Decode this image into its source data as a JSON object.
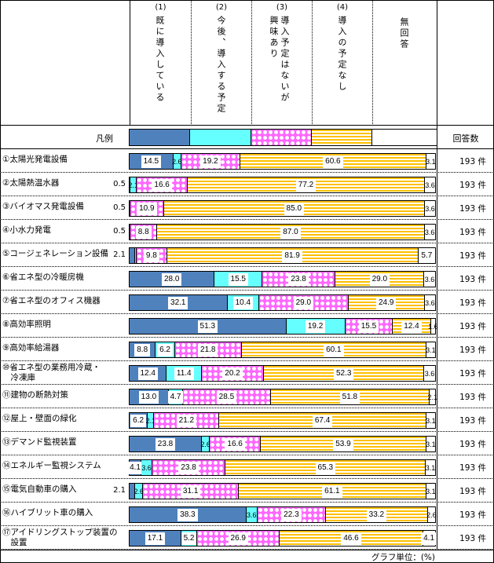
{
  "header": {
    "columns": [
      {
        "num": "(1)",
        "text": "既に導入している"
      },
      {
        "num": "(2)",
        "text": "今後、導入する予定"
      },
      {
        "num": "(3)",
        "text": "導入予定はないが興味あり"
      },
      {
        "num": "(4)",
        "text": "導入の予定なし"
      },
      {
        "num": "",
        "text": "無回答"
      }
    ]
  },
  "legend": {
    "label": "凡例",
    "count_header": "回答数"
  },
  "colors": {
    "already": "#4f81bd",
    "planned": "#66ffff",
    "interested": "#ff66ff",
    "no_plan": "#ffc000",
    "no_answer": "#ffffff"
  },
  "footer": {
    "unit": "グラフ単位：(%)"
  },
  "chart_data": {
    "type": "bar",
    "orientation": "horizontal-stacked-100",
    "title": "",
    "unit": "%",
    "series_names": [
      "(1)既に導入している",
      "(2)今後、導入する予定",
      "(3)導入予定はないが興味あり",
      "(4)導入の予定なし",
      "無回答"
    ],
    "categories": [
      "①太陽光発電設備",
      "②太陽熱温水器",
      "③バイオマス発電設備",
      "④小水力発電",
      "⑤コージェネレーション設備",
      "⑥省エネ型の冷暖房機",
      "⑦省エネ型のオフィス機器",
      "⑧高効率照明",
      "⑨高効率給湯器",
      "⑩省エネ型の業務用冷蔵・冷凍庫",
      "⑪建物の断熱対策",
      "⑫屋上・壁面の緑化",
      "⑬デマンド監視装置",
      "⑭エネルギー監視システム",
      "⑮電気自動車の購入",
      "⑯ハイブリット車の購入",
      "⑰アイドリングストップ装置の設置"
    ],
    "rows": [
      {
        "label": "①太陽光発電設備",
        "values": [
          14.5,
          2.6,
          19.2,
          60.6,
          3.1
        ],
        "n": "193"
      },
      {
        "label": "②太陽熱温水器",
        "values": [
          0.5,
          2.1,
          16.6,
          77.2,
          3.6
        ],
        "n": "193"
      },
      {
        "label": "③バイオマス発電設備",
        "values": [
          0.5,
          0.0,
          10.9,
          85.0,
          3.6
        ],
        "n": "193"
      },
      {
        "label": "④小水力発電",
        "values": [
          0.5,
          0.0,
          8.8,
          87.0,
          3.6
        ],
        "n": "193"
      },
      {
        "label": "⑤コージェネレーション設備",
        "values": [
          2.1,
          0.5,
          9.8,
          81.9,
          5.7
        ],
        "n": "193"
      },
      {
        "label": "⑥省エネ型の冷暖房機",
        "values": [
          28.0,
          15.5,
          23.8,
          29.0,
          3.6
        ],
        "n": "193"
      },
      {
        "label": "⑦省エネ型のオフィス機器",
        "values": [
          32.1,
          10.4,
          29.0,
          24.9,
          3.6
        ],
        "n": "193"
      },
      {
        "label": "⑧高効率照明",
        "values": [
          51.3,
          19.2,
          15.5,
          12.4,
          1.6
        ],
        "n": "193"
      },
      {
        "label": "⑨高効率給湯器",
        "values": [
          8.8,
          6.2,
          21.8,
          60.1,
          3.1
        ],
        "n": "193"
      },
      {
        "label": "⑩省エネ型の業務用冷蔵・冷凍庫",
        "values": [
          12.4,
          11.4,
          20.2,
          52.3,
          3.6
        ],
        "n": "193"
      },
      {
        "label": "⑪建物の断熱対策",
        "values": [
          13.0,
          4.7,
          28.5,
          51.8,
          2.1
        ],
        "n": "193"
      },
      {
        "label": "⑫屋上・壁面の緑化",
        "values": [
          6.2,
          2.1,
          21.2,
          67.4,
          3.1
        ],
        "n": "193"
      },
      {
        "label": "⑬デマンド監視装置",
        "values": [
          23.8,
          2.6,
          16.6,
          53.9,
          3.1
        ],
        "n": "193"
      },
      {
        "label": "⑭エネルギー監視システム",
        "values": [
          4.1,
          3.6,
          23.8,
          65.3,
          3.1
        ],
        "n": "193"
      },
      {
        "label": "⑮電気自動車の購入",
        "values": [
          2.1,
          2.6,
          31.1,
          61.1,
          3.1
        ],
        "n": "193"
      },
      {
        "label": "⑯ハイブリット車の購入",
        "values": [
          38.3,
          3.6,
          22.3,
          33.2,
          2.6
        ],
        "n": "193"
      },
      {
        "label": "⑰アイドリングストップ装置の設置",
        "values": [
          17.1,
          5.2,
          26.9,
          46.6,
          4.1
        ],
        "n": "193"
      }
    ],
    "count_unit": "件",
    "xlim": [
      0,
      100
    ],
    "legend_position": "top"
  },
  "rows_display": [
    {
      "l1": "①太陽光発電設備",
      "l2": "",
      "v": [
        "14.5",
        "2.6",
        "19.2",
        "60.6",
        "3.1"
      ],
      "out": ""
    },
    {
      "l1": "②太陽熱温水器",
      "l2": "",
      "v": [
        "",
        "2.1",
        "16.6",
        "77.2",
        "3.6"
      ],
      "out": "0.5"
    },
    {
      "l1": "③バイオマス発電設備",
      "l2": "",
      "v": [
        "",
        "",
        "10.9",
        "85.0",
        "3.6"
      ],
      "out": "0.5"
    },
    {
      "l1": "④小水力発電",
      "l2": "",
      "v": [
        "",
        "",
        "8.8",
        "87.0",
        "3.6"
      ],
      "out": "0.5"
    },
    {
      "l1": "⑤コージェネレーション設備",
      "l2": "",
      "v": [
        "",
        "",
        "9.8",
        "81.9",
        "5.7"
      ],
      "out": "2.1"
    },
    {
      "l1": "⑥省エネ型の冷暖房機",
      "l2": "",
      "v": [
        "28.0",
        "15.5",
        "23.8",
        "29.0",
        "3.6"
      ],
      "out": ""
    },
    {
      "l1": "⑦省エネ型のオフィス機器",
      "l2": "",
      "v": [
        "32.1",
        "10.4",
        "29.0",
        "24.9",
        "3.6"
      ],
      "out": ""
    },
    {
      "l1": "⑧高効率照明",
      "l2": "",
      "v": [
        "51.3",
        "19.2",
        "15.5",
        "12.4",
        "1.6"
      ],
      "out": ""
    },
    {
      "l1": "⑨高効率給湯器",
      "l2": "",
      "v": [
        "8.8",
        "6.2",
        "21.8",
        "60.1",
        "3.1"
      ],
      "out": ""
    },
    {
      "l1": "⑩省エネ型の業務用冷蔵・",
      "l2": "　冷凍庫",
      "v": [
        "12.4",
        "11.4",
        "20.2",
        "52.3",
        "3.6"
      ],
      "out": ""
    },
    {
      "l1": "⑪建物の断熱対策",
      "l2": "",
      "v": [
        "13.0",
        "4.7",
        "28.5",
        "51.8",
        "2.1"
      ],
      "out": ""
    },
    {
      "l1": "⑫屋上・壁面の緑化",
      "l2": "",
      "v": [
        "6.2",
        "2.1",
        "21.2",
        "67.4",
        "3.1"
      ],
      "out": ""
    },
    {
      "l1": "⑬デマンド監視装置",
      "l2": "",
      "v": [
        "23.8",
        "2.6",
        "16.6",
        "53.9",
        "3.1"
      ],
      "out": ""
    },
    {
      "l1": "⑭エネルギー監視システム",
      "l2": "",
      "v": [
        "4.1",
        "3.6",
        "23.8",
        "65.3",
        "3.1"
      ],
      "out": ""
    },
    {
      "l1": "⑮電気自動車の購入",
      "l2": "",
      "v": [
        "",
        "2.6",
        "31.1",
        "61.1",
        "3.1"
      ],
      "out": "2.1"
    },
    {
      "l1": "⑯ハイブリット車の購入",
      "l2": "",
      "v": [
        "38.3",
        "3.6",
        "22.3",
        "33.2",
        "2.6"
      ],
      "out": ""
    },
    {
      "l1": "⑰アイドリングストップ装置の",
      "l2": "　設置",
      "v": [
        "17.1",
        "5.2",
        "26.9",
        "46.6",
        "4.1"
      ],
      "out": ""
    }
  ],
  "count_text": "193  件"
}
